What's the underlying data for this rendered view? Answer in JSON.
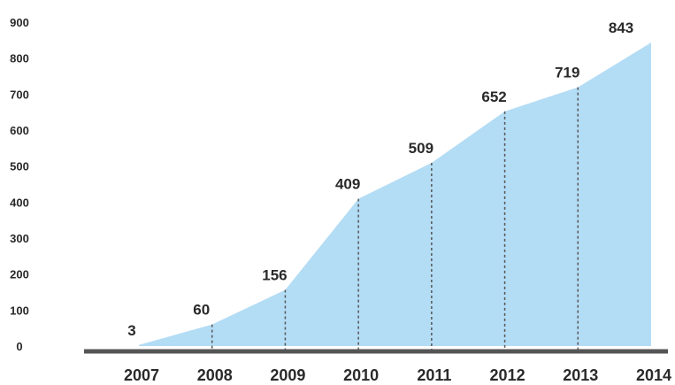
{
  "chart_data": {
    "type": "area",
    "categories": [
      "2007",
      "2008",
      "2009",
      "2010",
      "2011",
      "2012",
      "2013",
      "2014"
    ],
    "values": [
      3,
      60,
      156,
      409,
      509,
      652,
      719,
      843
    ],
    "data_labels": [
      "3",
      "60",
      "156",
      "409",
      "509",
      "652",
      "719",
      "843"
    ],
    "yticks": [
      "0",
      "100",
      "200",
      "300",
      "400",
      "500",
      "600",
      "700",
      "800",
      "900"
    ],
    "ylim": [
      0,
      900
    ],
    "title": "",
    "xlabel": "",
    "ylabel": "",
    "grid": false,
    "legend": "none",
    "colors": {
      "fill": "#b3dcf5",
      "axis": "#555555",
      "dropline": "#555555",
      "text": "#2a2a2a"
    }
  }
}
